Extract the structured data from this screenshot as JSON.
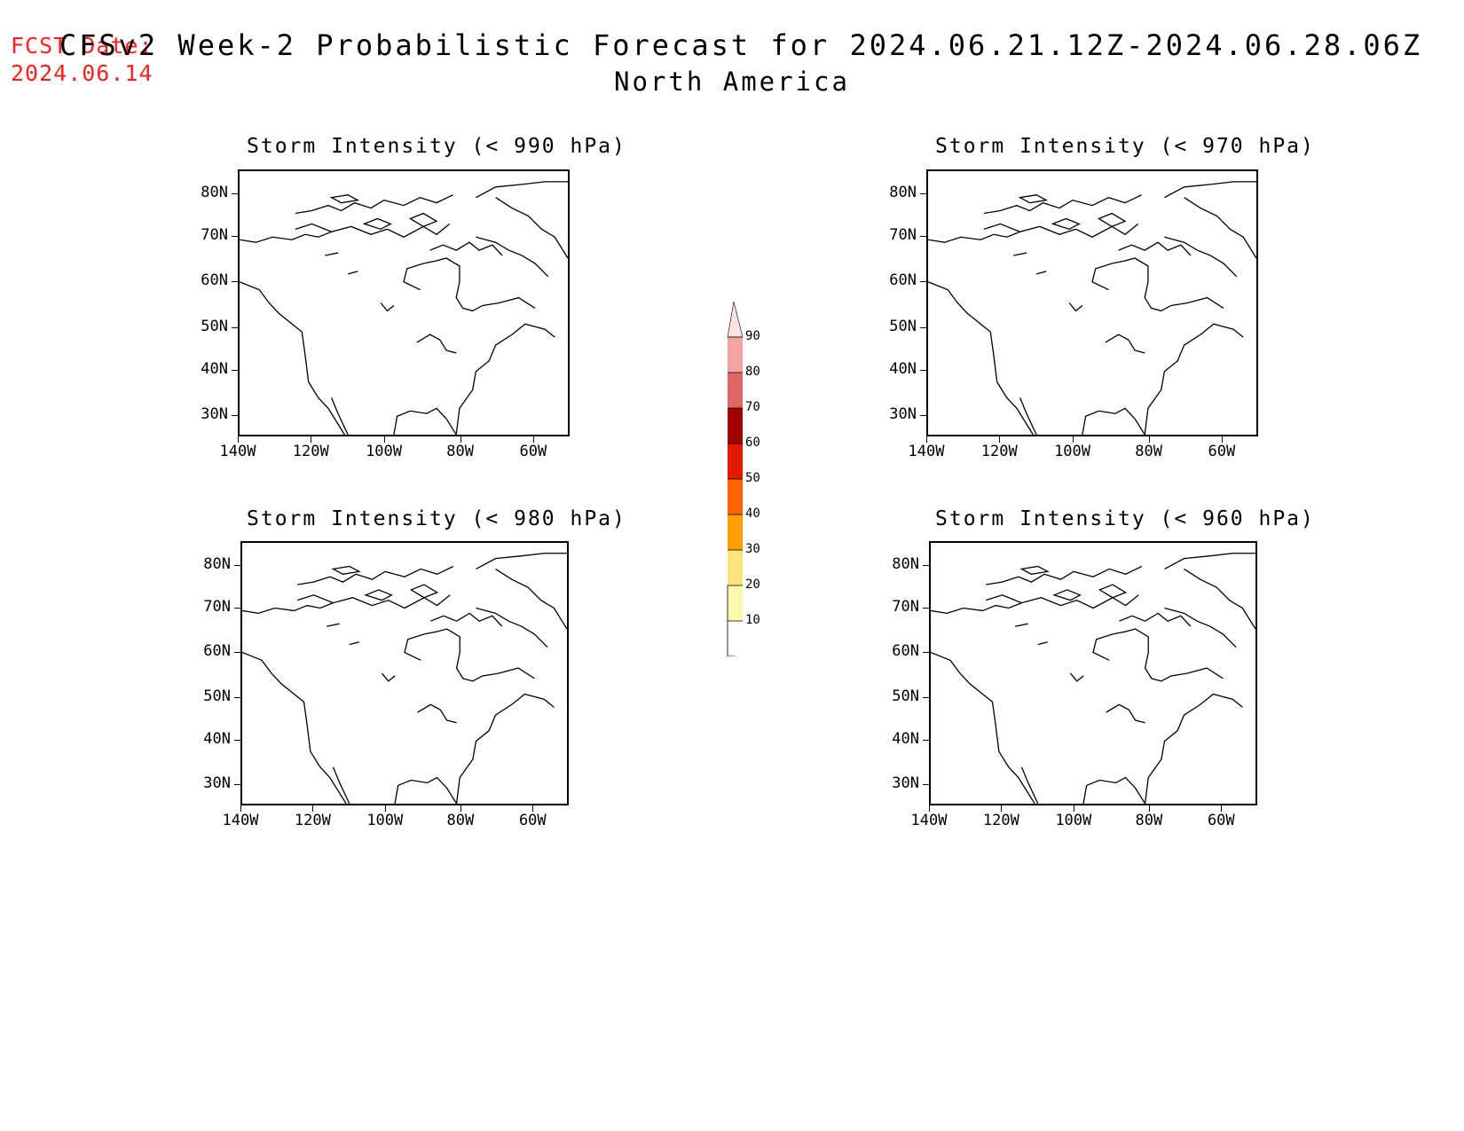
{
  "forecast_date": {
    "label": "FCST Date:",
    "value": "2024.06.14"
  },
  "title": "CFSv2 Week-2 Probabilistic Forecast for 2024.06.21.12Z-2024.06.28.06Z",
  "subtitle": "North America",
  "panels": [
    {
      "title": "Storm Intensity (< 990 hPa)"
    },
    {
      "title": "Storm Intensity (< 970 hPa)"
    },
    {
      "title": "Storm Intensity (< 980 hPa)"
    },
    {
      "title": "Storm Intensity (< 960 hPa)"
    }
  ],
  "lat_labels": [
    "80N",
    "70N",
    "60N",
    "50N",
    "40N",
    "30N"
  ],
  "lon_labels": [
    "140W",
    "120W",
    "100W",
    "80W",
    "60W"
  ],
  "colorbar": {
    "levels": [
      "10",
      "20",
      "30",
      "40",
      "50",
      "60",
      "70",
      "80",
      "90"
    ],
    "colors": [
      "#fff9b0",
      "#ffe27a",
      "#ff9f00",
      "#ff6600",
      "#e31a00",
      "#a00000",
      "#e06666",
      "#f4a3a3",
      "#fde0e0"
    ]
  }
}
